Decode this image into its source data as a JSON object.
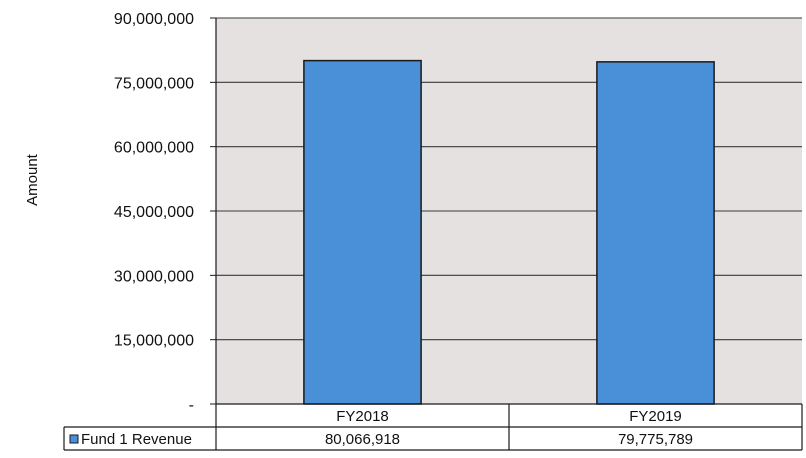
{
  "chart_data": {
    "type": "bar",
    "ylabel": "Amount",
    "categories": [
      "FY2018",
      "FY2019"
    ],
    "series": [
      {
        "name": "Fund 1 Revenue",
        "values": [
          80066918,
          79775789
        ],
        "value_labels": [
          "80,066,918",
          "79,775,789"
        ]
      }
    ],
    "ylim": [
      0,
      90000000
    ],
    "yticks": [
      0,
      15000000,
      30000000,
      45000000,
      60000000,
      75000000,
      90000000
    ],
    "ytick_labels": [
      "-",
      "15,000,000",
      "30,000,000",
      "45,000,000",
      "60,000,000",
      "75,000,000",
      "90,000,000"
    ],
    "grid": true,
    "legend": "data-table",
    "colors": {
      "bar": "#4a90d9",
      "bar_border": "#1a1a1a",
      "plot_background": "#e5e1e1",
      "gridline": "#3a3a3a"
    }
  }
}
